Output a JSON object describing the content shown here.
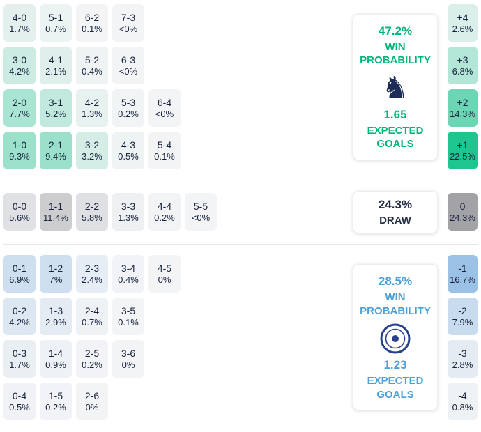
{
  "chart_data": {
    "type": "heatmap",
    "title": "Correct score probability matrix with win probability, draw probability and expected goals",
    "legend_position": "right",
    "max_pct": 24,
    "sections": [
      {
        "name": "home-win",
        "accent": "#00b578",
        "cell_base": "#10c287",
        "rows": [
          [
            {
              "score": "4-0",
              "pct": "1.7%",
              "v": 1.7
            },
            {
              "score": "5-1",
              "pct": "0.7%",
              "v": 0.7
            },
            {
              "score": "6-2",
              "pct": "0.1%",
              "v": 0.1
            },
            {
              "score": "7-3",
              "pct": "<0%",
              "v": 0
            }
          ],
          [
            {
              "score": "3-0",
              "pct": "4.2%",
              "v": 4.2
            },
            {
              "score": "4-1",
              "pct": "2.1%",
              "v": 2.1
            },
            {
              "score": "5-2",
              "pct": "0.4%",
              "v": 0.4
            },
            {
              "score": "6-3",
              "pct": "<0%",
              "v": 0
            }
          ],
          [
            {
              "score": "2-0",
              "pct": "7.7%",
              "v": 7.7
            },
            {
              "score": "3-1",
              "pct": "5.2%",
              "v": 5.2
            },
            {
              "score": "4-2",
              "pct": "1.3%",
              "v": 1.3
            },
            {
              "score": "5-3",
              "pct": "0.2%",
              "v": 0.2
            },
            {
              "score": "6-4",
              "pct": "<0%",
              "v": 0
            }
          ],
          [
            {
              "score": "1-0",
              "pct": "9.3%",
              "v": 9.3
            },
            {
              "score": "2-1",
              "pct": "9.4%",
              "v": 9.4
            },
            {
              "score": "3-2",
              "pct": "3.2%",
              "v": 3.2
            },
            {
              "score": "4-3",
              "pct": "0.5%",
              "v": 0.5
            },
            {
              "score": "5-4",
              "pct": "0.1%",
              "v": 0.1
            }
          ]
        ],
        "goal_diff": [
          {
            "label": "+4",
            "pct": "2.6%",
            "v": 2.6
          },
          {
            "label": "+3",
            "pct": "6.8%",
            "v": 6.8
          },
          {
            "label": "+2",
            "pct": "14.3%",
            "v": 14.3
          },
          {
            "label": "+1",
            "pct": "22.5%",
            "v": 22.5
          }
        ],
        "panel": {
          "probability": "47.2%",
          "label_lines": [
            "WIN",
            "PROBABILITY"
          ],
          "logo": "horse-crest-logo",
          "expected": "1.65",
          "expected_lines": [
            "EXPECTED",
            "GOALS"
          ]
        }
      },
      {
        "name": "draw",
        "accent": "#252e47",
        "cell_base": "#a2a2a7",
        "rows": [
          [
            {
              "score": "0-0",
              "pct": "5.6%",
              "v": 5.6
            },
            {
              "score": "1-1",
              "pct": "11.4%",
              "v": 11.4
            },
            {
              "score": "2-2",
              "pct": "5.8%",
              "v": 5.8
            },
            {
              "score": "3-3",
              "pct": "1.3%",
              "v": 1.3
            },
            {
              "score": "4-4",
              "pct": "0.2%",
              "v": 0.2
            },
            {
              "score": "5-5",
              "pct": "<0%",
              "v": 0
            }
          ]
        ],
        "goal_diff": [
          {
            "label": "0",
            "pct": "24.3%",
            "v": 24.3
          }
        ],
        "panel": {
          "probability": "24.3%",
          "label_lines": [
            "DRAW"
          ]
        }
      },
      {
        "name": "away-win",
        "accent": "#4da0d7",
        "cell_base": "#74abdf",
        "rows": [
          [
            {
              "score": "0-1",
              "pct": "6.9%",
              "v": 6.9
            },
            {
              "score": "1-2",
              "pct": "7%",
              "v": 7
            },
            {
              "score": "2-3",
              "pct": "2.4%",
              "v": 2.4
            },
            {
              "score": "3-4",
              "pct": "0.4%",
              "v": 0.4
            },
            {
              "score": "4-5",
              "pct": "0%",
              "v": 0
            }
          ],
          [
            {
              "score": "0-2",
              "pct": "4.2%",
              "v": 4.2
            },
            {
              "score": "1-3",
              "pct": "2.9%",
              "v": 2.9
            },
            {
              "score": "2-4",
              "pct": "0.7%",
              "v": 0.7
            },
            {
              "score": "3-5",
              "pct": "0.1%",
              "v": 0.1
            }
          ],
          [
            {
              "score": "0-3",
              "pct": "1.7%",
              "v": 1.7
            },
            {
              "score": "1-4",
              "pct": "0.9%",
              "v": 0.9
            },
            {
              "score": "2-5",
              "pct": "0.2%",
              "v": 0.2
            },
            {
              "score": "3-6",
              "pct": "0%",
              "v": 0
            }
          ],
          [
            {
              "score": "0-4",
              "pct": "0.5%",
              "v": 0.5
            },
            {
              "score": "1-5",
              "pct": "0.2%",
              "v": 0.2
            },
            {
              "score": "2-6",
              "pct": "0%",
              "v": 0
            }
          ]
        ],
        "goal_diff": [
          {
            "label": "-1",
            "pct": "16.7%",
            "v": 16.7
          },
          {
            "label": "-2",
            "pct": "7.9%",
            "v": 7.9
          },
          {
            "label": "-3",
            "pct": "2.8%",
            "v": 2.8
          },
          {
            "label": "-4",
            "pct": "0.8%",
            "v": 0.8
          }
        ],
        "panel": {
          "probability": "28.5%",
          "label_lines": [
            "WIN",
            "PROBABILITY"
          ],
          "logo": "circle-club-badge-logo",
          "expected": "1.23",
          "expected_lines": [
            "EXPECTED",
            "GOALS"
          ]
        }
      }
    ]
  }
}
